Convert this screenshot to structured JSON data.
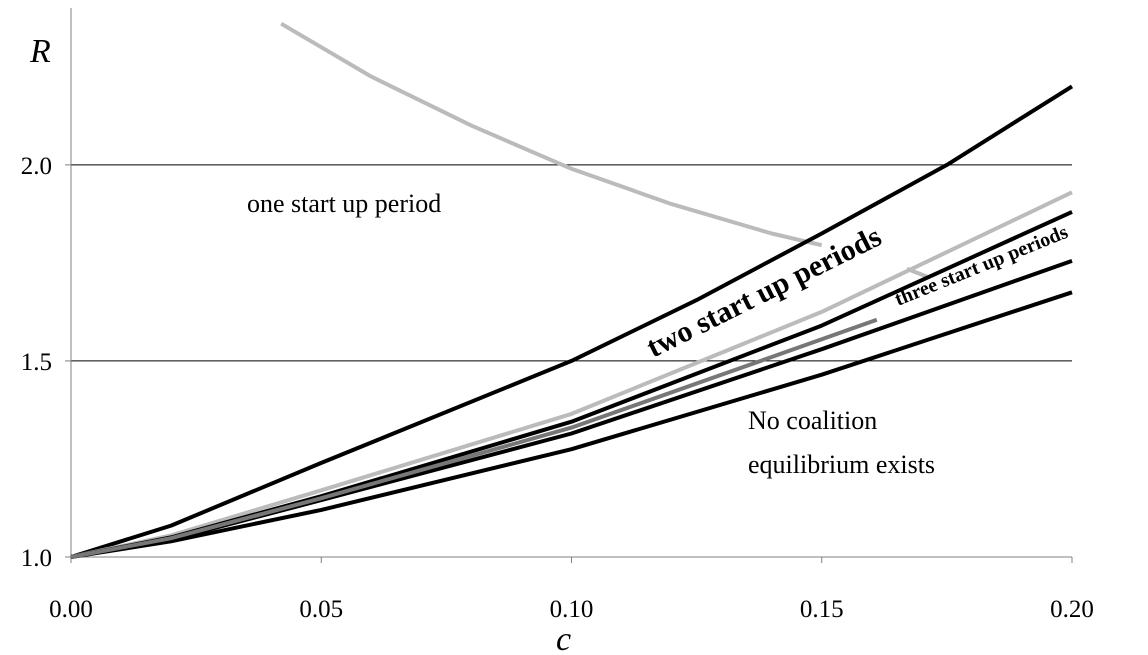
{
  "chart_data": {
    "type": "line",
    "title": "",
    "xlabel": "c",
    "ylabel": "R",
    "xlim": [
      0,
      0.2
    ],
    "ylim": [
      1.0,
      2.4
    ],
    "x_ticks": [
      0.0,
      0.05,
      0.1,
      0.15,
      0.2
    ],
    "x_tick_labels": [
      "0.00",
      "0.05",
      "0.10",
      "0.15",
      "0.20"
    ],
    "y_ticks": [
      1.0,
      1.5,
      2.0
    ],
    "y_tick_labels": [
      "1.0",
      "1.5",
      "2.0"
    ],
    "grid": "horizontal",
    "series": [
      {
        "color": "#bbbbbb",
        "x": [
          0.042,
          0.06,
          0.08,
          0.1,
          0.12,
          0.14,
          0.15
        ],
        "y": [
          2.36,
          2.225,
          2.1,
          1.99,
          1.9,
          1.825,
          1.795
        ]
      },
      {
        "color": "#bbbbbb",
        "x": [
          0.167,
          0.171
        ],
        "y": [
          1.735,
          1.715
        ]
      },
      {
        "color": "#000000",
        "x": [
          0.0,
          0.02,
          0.05,
          0.1,
          0.125,
          0.15,
          0.175,
          0.2
        ],
        "y": [
          1.0,
          1.08,
          1.24,
          1.5,
          1.655,
          1.825,
          2.0,
          2.2
        ]
      },
      {
        "color": "#bbbbbb",
        "x": [
          0.0,
          0.02,
          0.05,
          0.1,
          0.15,
          0.2
        ],
        "y": [
          1.0,
          1.055,
          1.17,
          1.365,
          1.625,
          1.93
        ]
      },
      {
        "color": "#000000",
        "x": [
          0.0,
          0.02,
          0.05,
          0.1,
          0.15,
          0.2
        ],
        "y": [
          1.0,
          1.05,
          1.155,
          1.345,
          1.59,
          1.88
        ]
      },
      {
        "color": "#000000",
        "x": [
          0.0,
          0.02,
          0.05,
          0.1,
          0.15,
          0.2
        ],
        "y": [
          1.0,
          1.045,
          1.145,
          1.315,
          1.53,
          1.755
        ]
      },
      {
        "color": "#000000",
        "x": [
          0.0,
          0.02,
          0.05,
          0.1,
          0.15,
          0.2
        ],
        "y": [
          1.0,
          1.04,
          1.12,
          1.275,
          1.465,
          1.675
        ]
      },
      {
        "color": "#777777",
        "x": [
          0.0,
          0.02,
          0.05,
          0.1,
          0.14,
          0.161
        ],
        "y": [
          1.0,
          1.048,
          1.15,
          1.33,
          1.51,
          1.605
        ]
      }
    ],
    "annotations": [
      {
        "id": "one",
        "text": "one start up period"
      },
      {
        "id": "two",
        "text": "two start up periods"
      },
      {
        "id": "three",
        "text": "three start up periods"
      },
      {
        "id": "none1",
        "text": "No coalition"
      },
      {
        "id": "none2",
        "text": "equilibrium exists"
      }
    ]
  }
}
